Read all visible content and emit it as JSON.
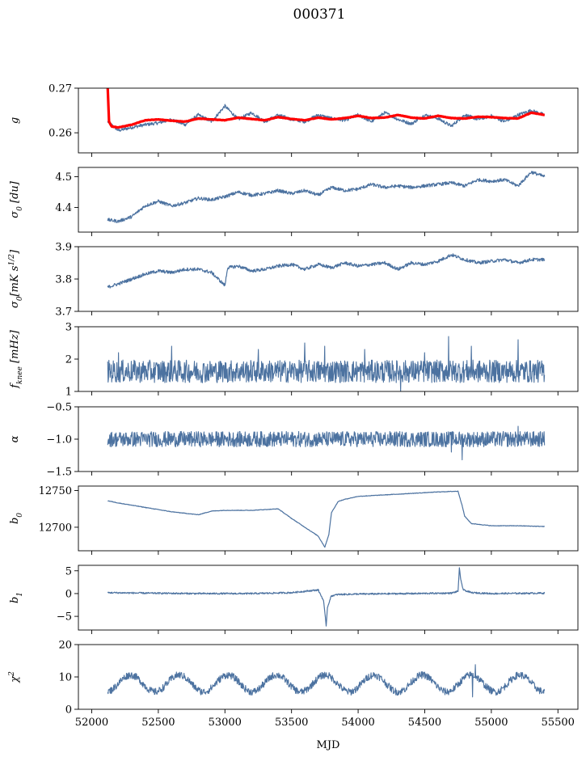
{
  "figure": {
    "title": "000371",
    "xlabel": "MJD"
  },
  "colors": {
    "series": "#4c72a0",
    "model": "#ff0000",
    "axes": "#000000"
  },
  "chart_data": {
    "type": "line",
    "shared_x": {
      "range": [
        51900,
        55650
      ],
      "ticks": [
        52000,
        52500,
        53000,
        53500,
        54000,
        54500,
        55000,
        55500
      ],
      "tick_labels": [
        "52000",
        "52500",
        "53000",
        "53500",
        "54000",
        "54500",
        "55000",
        "55500"
      ],
      "data_range": [
        52120,
        55400
      ]
    },
    "panels": [
      {
        "ylabel_html": "g",
        "ylim": [
          0.2555,
          0.27
        ],
        "yticks": [
          0.26,
          0.27
        ],
        "ytick_labels": [
          "0.26",
          "0.27"
        ],
        "series": [
          {
            "name": "g",
            "x": [
              52120,
              52200,
              52300,
              52400,
              52500,
              52600,
              52700,
              52800,
              52900,
              53000,
              53100,
              53200,
              53300,
              53400,
              53500,
              53600,
              53700,
              53800,
              53900,
              54000,
              54100,
              54200,
              54300,
              54400,
              54500,
              54600,
              54700,
              54800,
              54900,
              55000,
              55100,
              55200,
              55300,
              55400
            ],
            "y": [
              0.2625,
              0.2605,
              0.2612,
              0.2618,
              0.2622,
              0.263,
              0.2618,
              0.264,
              0.2625,
              0.266,
              0.263,
              0.2645,
              0.2625,
              0.264,
              0.263,
              0.2625,
              0.264,
              0.2632,
              0.2628,
              0.264,
              0.2625,
              0.2645,
              0.263,
              0.262,
              0.264,
              0.2632,
              0.2615,
              0.264,
              0.263,
              0.2638,
              0.2625,
              0.264,
              0.265,
              0.264
            ]
          },
          {
            "name": "g model",
            "x": [
              52120,
              52130,
              52150,
              52200,
              52300,
              52400,
              52500,
              52600,
              52700,
              52800,
              52900,
              53000,
              53100,
              53200,
              53300,
              53400,
              53500,
              53600,
              53700,
              53800,
              53900,
              54000,
              54100,
              54200,
              54300,
              54400,
              54500,
              54600,
              54700,
              54800,
              54900,
              55000,
              55100,
              55200,
              55300,
              55400
            ],
            "y": [
              0.27,
              0.2625,
              0.2614,
              0.2612,
              0.2618,
              0.2628,
              0.263,
              0.2627,
              0.2625,
              0.2632,
              0.263,
              0.2628,
              0.2634,
              0.2631,
              0.2628,
              0.2635,
              0.2631,
              0.2628,
              0.2634,
              0.263,
              0.2633,
              0.2638,
              0.2633,
              0.2634,
              0.264,
              0.2634,
              0.2632,
              0.2638,
              0.2633,
              0.2632,
              0.2636,
              0.2635,
              0.2633,
              0.2632,
              0.2645,
              0.264
            ]
          }
        ]
      },
      {
        "ylabel_html": "σ<tspan baseline-shift='sub' font-size='9'>0</tspan> [du]",
        "ylim": [
          4.32,
          4.53
        ],
        "yticks": [
          4.4,
          4.5
        ],
        "ytick_labels": [
          "4.4",
          "4.5"
        ],
        "series": [
          {
            "name": "sigma0 du",
            "x": [
              52120,
              52200,
              52300,
              52400,
              52500,
              52600,
              52700,
              52800,
              52900,
              53000,
              53100,
              53200,
              53300,
              53400,
              53500,
              53600,
              53700,
              53800,
              53900,
              54000,
              54100,
              54200,
              54300,
              54400,
              54500,
              54600,
              54700,
              54800,
              54900,
              55000,
              55100,
              55200,
              55300,
              55400
            ],
            "y": [
              4.36,
              4.355,
              4.37,
              4.405,
              4.42,
              4.405,
              4.415,
              4.43,
              4.425,
              4.435,
              4.45,
              4.44,
              4.445,
              4.455,
              4.445,
              4.455,
              4.44,
              4.465,
              4.455,
              4.46,
              4.475,
              4.465,
              4.47,
              4.465,
              4.47,
              4.475,
              4.48,
              4.47,
              4.49,
              4.485,
              4.49,
              4.47,
              4.515,
              4.5
            ]
          }
        ]
      },
      {
        "ylabel_html": "σ<tspan baseline-shift='sub' font-size='9'>0</tspan>[mK s<tspan baseline-shift='super' font-size='9'>1/2</tspan>]",
        "ylim": [
          3.7,
          3.9
        ],
        "yticks": [
          3.7,
          3.8,
          3.9
        ],
        "ytick_labels": [
          "3.7",
          "3.8",
          "3.9"
        ],
        "series": [
          {
            "name": "sigma0 mK",
            "x": [
              52120,
              52200,
              52300,
              52400,
              52500,
              52600,
              52700,
              52800,
              52900,
              53000,
              53020,
              53100,
              53200,
              53300,
              53400,
              53500,
              53600,
              53700,
              53800,
              53900,
              54000,
              54100,
              54200,
              54300,
              54400,
              54500,
              54600,
              54700,
              54800,
              54900,
              55000,
              55100,
              55200,
              55300,
              55400
            ],
            "y": [
              3.775,
              3.785,
              3.8,
              3.815,
              3.825,
              3.82,
              3.83,
              3.83,
              3.82,
              3.78,
              3.835,
              3.84,
              3.825,
              3.83,
              3.84,
              3.845,
              3.83,
              3.845,
              3.835,
              3.85,
              3.84,
              3.845,
              3.85,
              3.83,
              3.85,
              3.845,
              3.855,
              3.875,
              3.86,
              3.85,
              3.855,
              3.86,
              3.85,
              3.86,
              3.86
            ]
          }
        ]
      },
      {
        "ylabel_html": "f<tspan baseline-shift='sub' font-size='9'>knee</tspan> [mHz]",
        "ylim": [
          1,
          3
        ],
        "yticks": [
          1,
          2,
          3
        ],
        "ytick_labels": [
          "1",
          "2",
          "3"
        ],
        "noise": {
          "mean": 1.62,
          "amp": 0.35,
          "spikes": [
            [
              52200,
              2.2
            ],
            [
              52600,
              2.4
            ],
            [
              53250,
              2.3
            ],
            [
              53600,
              2.5
            ],
            [
              53750,
              2.4
            ],
            [
              54050,
              2.3
            ],
            [
              54500,
              2.2
            ],
            [
              54680,
              2.7
            ],
            [
              54850,
              2.4
            ],
            [
              55200,
              2.6
            ],
            [
              54320,
              1.0
            ]
          ]
        }
      },
      {
        "ylabel_html": "α",
        "ylim": [
          -1.5,
          -0.5
        ],
        "yticks": [
          -1.5,
          -1.0,
          -0.5
        ],
        "ytick_labels": [
          "−1.5",
          "−1.0",
          "−0.5"
        ],
        "noise": {
          "mean": -1.0,
          "amp": 0.12,
          "spikes": [
            [
              54780,
              -1.32
            ],
            [
              54700,
              -1.2
            ],
            [
              55200,
              -0.8
            ]
          ]
        }
      },
      {
        "ylabel_html": "b<tspan baseline-shift='sub' font-size='9'>0</tspan>",
        "ylim": [
          12668,
          12756
        ],
        "yticks": [
          12700,
          12750
        ],
        "ytick_labels": [
          "12700",
          "12750"
        ],
        "series": [
          {
            "name": "b0",
            "x": [
              52120,
              52200,
              52400,
              52600,
              52800,
              52900,
              53000,
              53200,
              53400,
              53500,
              53600,
              53700,
              53750,
              53780,
              53800,
              53850,
              53900,
              54000,
              54200,
              54400,
              54600,
              54750,
              54780,
              54800,
              54850,
              55000,
              55200,
              55400
            ],
            "y": [
              12736,
              12733,
              12727,
              12721,
              12717,
              12722,
              12723,
              12723,
              12725,
              12712,
              12700,
              12688,
              12673,
              12690,
              12720,
              12735,
              12738,
              12742,
              12744,
              12746,
              12748,
              12749,
              12730,
              12715,
              12705,
              12702,
              12702,
              12701
            ]
          }
        ]
      },
      {
        "ylabel_html": "b<tspan baseline-shift='sub' font-size='9'>1</tspan>",
        "ylim": [
          -8,
          6.2
        ],
        "yticks": [
          -5,
          0,
          5
        ],
        "ytick_labels": [
          "−5",
          "0",
          "5"
        ],
        "series": [
          {
            "name": "b1",
            "x": [
              52120,
              52400,
              52800,
              53200,
              53500,
              53700,
              53740,
              53760,
              53770,
              53790,
              53800,
              53850,
              54000,
              54400,
              54700,
              54750,
              54760,
              54770,
              54790,
              54850,
              55000,
              55400
            ],
            "y": [
              0.2,
              0.1,
              0.0,
              0.0,
              0.2,
              0.8,
              -1.5,
              -7.0,
              -3.0,
              -1.2,
              -0.5,
              -0.2,
              -0.1,
              0.0,
              0.1,
              0.5,
              5.6,
              3.0,
              0.8,
              0.2,
              0.0,
              0.1
            ]
          }
        ]
      },
      {
        "ylabel_html": "χ<tspan baseline-shift='super' font-size='9'>2</tspan>",
        "ylim": [
          0,
          20
        ],
        "yticks": [
          0,
          10,
          20
        ],
        "ytick_labels": [
          "0",
          "10",
          "20"
        ],
        "noise": {
          "mean": 8,
          "amp": 1.1,
          "seasonal": {
            "amp": 2.6,
            "period": 365.25,
            "phase": 52200
          },
          "spikes": [
            [
              54880,
              13.8
            ],
            [
              54860,
              3.8
            ]
          ]
        }
      }
    ]
  }
}
